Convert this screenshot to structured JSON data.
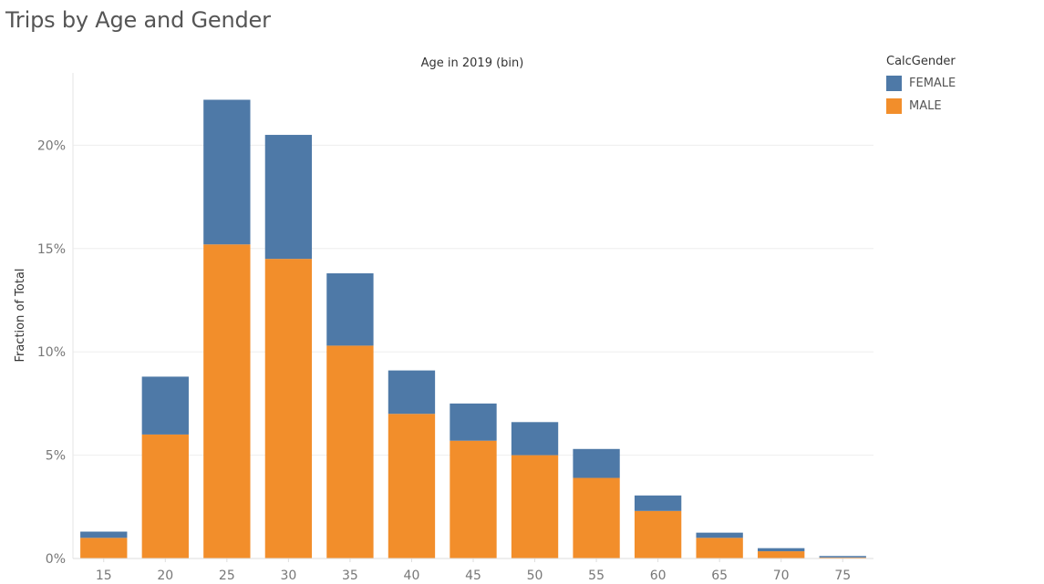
{
  "title": "Trips by Age and Gender",
  "legend": {
    "title": "CalcGender",
    "items": [
      {
        "label": "FEMALE",
        "color": "#4e79a7"
      },
      {
        "label": "MALE",
        "color": "#f28e2b"
      }
    ]
  },
  "chart_data": {
    "type": "bar",
    "stacked": true,
    "title": "Trips by Age and Gender",
    "xlabel": "Age in 2019 (bin)",
    "ylabel": "Fraction of Total",
    "categories": [
      "15",
      "20",
      "25",
      "30",
      "35",
      "40",
      "45",
      "50",
      "55",
      "60",
      "65",
      "70",
      "75"
    ],
    "series": [
      {
        "name": "MALE",
        "color": "#f28e2b",
        "values": [
          1.0,
          6.0,
          15.2,
          14.5,
          10.3,
          7.0,
          5.7,
          5.0,
          3.9,
          2.3,
          1.0,
          0.35,
          0.05
        ]
      },
      {
        "name": "FEMALE",
        "color": "#4e79a7",
        "values": [
          0.3,
          2.8,
          7.0,
          6.0,
          3.5,
          2.1,
          1.8,
          1.6,
          1.4,
          0.75,
          0.25,
          0.15,
          0.07
        ]
      }
    ],
    "yticks": [
      0,
      5,
      10,
      15,
      20
    ],
    "ytick_labels": [
      "0%",
      "5%",
      "10%",
      "15%",
      "20%"
    ],
    "ylim": [
      0,
      23.5
    ],
    "grid": true,
    "legend_position": "top-right"
  }
}
